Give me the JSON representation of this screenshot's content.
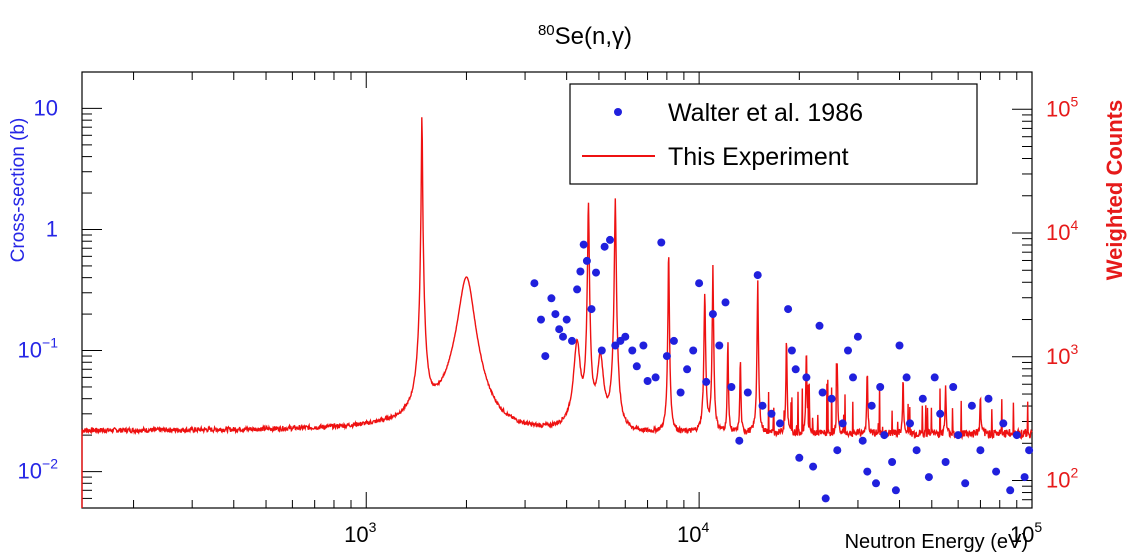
{
  "chart_data": {
    "type": "scatter",
    "title": {
      "isotope_mass": "80",
      "reaction": "Se(n,γ)"
    },
    "xlabel": "Neutron Energy (eV)",
    "ylabel_left": "Cross-section (b)",
    "ylabel_right": "Weighted  Counts",
    "x_scale": "log",
    "y_scale": "log",
    "xlim": [
      140,
      100000
    ],
    "ylim_left": [
      0.005,
      20
    ],
    "ylim_right": [
      60,
      200000
    ],
    "x_ticks": [
      {
        "base": "10",
        "exp": "3",
        "value": 1000
      },
      {
        "base": "10",
        "exp": "4",
        "value": 10000
      },
      {
        "base": "10",
        "exp": "5",
        "value": 100000
      }
    ],
    "y_ticks_left": [
      {
        "base": "10",
        "exp": "",
        "value": 10
      },
      {
        "base": "1",
        "exp": "",
        "value": 1
      },
      {
        "base": "10",
        "exp": "−1",
        "value": 0.1
      },
      {
        "base": "10",
        "exp": "−2",
        "value": 0.01
      }
    ],
    "y_ticks_right": [
      {
        "base": "10",
        "exp": "5",
        "value": 100000
      },
      {
        "base": "10",
        "exp": "4",
        "value": 10000
      },
      {
        "base": "10",
        "exp": "3",
        "value": 1000
      },
      {
        "base": "10",
        "exp": "2",
        "value": 100
      }
    ],
    "legend_position": "top-right",
    "colors": {
      "left_axis": "#2626e6",
      "right_axis": "#e61a1a",
      "scatter": "#2020dd",
      "line": "#ee1111"
    },
    "series": [
      {
        "name": "Walter et al. 1986",
        "kind": "scatter",
        "axis": "left",
        "points": [
          [
            3200,
            0.36
          ],
          [
            3350,
            0.18
          ],
          [
            3450,
            0.09
          ],
          [
            3600,
            0.27
          ],
          [
            3700,
            0.2
          ],
          [
            3800,
            0.15
          ],
          [
            3900,
            0.13
          ],
          [
            4000,
            0.18
          ],
          [
            4150,
            0.12
          ],
          [
            4300,
            0.32
          ],
          [
            4400,
            0.45
          ],
          [
            4500,
            0.75
          ],
          [
            4600,
            0.55
          ],
          [
            4750,
            0.22
          ],
          [
            4900,
            0.44
          ],
          [
            5100,
            0.1
          ],
          [
            5200,
            0.72
          ],
          [
            5400,
            0.82
          ],
          [
            5600,
            0.11
          ],
          [
            5800,
            0.12
          ],
          [
            6000,
            0.13
          ],
          [
            6300,
            0.1
          ],
          [
            6500,
            0.074
          ],
          [
            6800,
            0.11
          ],
          [
            7000,
            0.056
          ],
          [
            7400,
            0.06
          ],
          [
            7700,
            0.78
          ],
          [
            8000,
            0.09
          ],
          [
            8400,
            0.12
          ],
          [
            8800,
            0.045
          ],
          [
            9200,
            0.07
          ],
          [
            9600,
            0.1
          ],
          [
            10000,
            0.36
          ],
          [
            10500,
            0.055
          ],
          [
            11000,
            0.2
          ],
          [
            11500,
            0.11
          ],
          [
            12000,
            0.25
          ],
          [
            12500,
            0.05
          ],
          [
            13200,
            0.018
          ],
          [
            14000,
            0.045
          ],
          [
            15000,
            0.42
          ],
          [
            15500,
            0.035
          ],
          [
            16500,
            0.03
          ],
          [
            17500,
            0.025
          ],
          [
            18500,
            0.22
          ],
          [
            19000,
            0.1
          ],
          [
            19500,
            0.07
          ],
          [
            20000,
            0.013
          ],
          [
            21000,
            0.06
          ],
          [
            22000,
            0.011
          ],
          [
            23000,
            0.16
          ],
          [
            23500,
            0.045
          ],
          [
            24000,
            0.006
          ],
          [
            25000,
            0.04
          ],
          [
            26000,
            0.015
          ],
          [
            27000,
            0.025
          ],
          [
            28000,
            0.1
          ],
          [
            29000,
            0.06
          ],
          [
            30000,
            0.13
          ],
          [
            31000,
            0.018
          ],
          [
            32000,
            0.01
          ],
          [
            33000,
            0.035
          ],
          [
            34000,
            0.008
          ],
          [
            35000,
            0.05
          ],
          [
            36000,
            0.02
          ],
          [
            38000,
            0.012
          ],
          [
            39000,
            0.007
          ],
          [
            40000,
            0.11
          ],
          [
            42000,
            0.06
          ],
          [
            43000,
            0.025
          ],
          [
            45000,
            0.015
          ],
          [
            47000,
            0.04
          ],
          [
            49000,
            0.009
          ],
          [
            51000,
            0.06
          ],
          [
            53000,
            0.03
          ],
          [
            55000,
            0.012
          ],
          [
            58000,
            0.05
          ],
          [
            60000,
            0.02
          ],
          [
            63000,
            0.008
          ],
          [
            66000,
            0.035
          ],
          [
            70000,
            0.015
          ],
          [
            74000,
            0.04
          ],
          [
            78000,
            0.01
          ],
          [
            82000,
            0.025
          ],
          [
            86000,
            0.007
          ],
          [
            90000,
            0.02
          ],
          [
            95000,
            0.009
          ],
          [
            98000,
            0.015
          ]
        ]
      },
      {
        "name": "This Experiment",
        "kind": "line",
        "axis": "right",
        "baseline": 240,
        "noise_fraction": 0.05,
        "resonances": [
          {
            "energy": 1470,
            "peak": 90000,
            "width_fraction": 0.003
          },
          {
            "energy": 2000,
            "peak": 4400,
            "width_fraction": 0.05
          },
          {
            "energy": 4300,
            "peak": 1300,
            "width_fraction": 0.02
          },
          {
            "energy": 4650,
            "peak": 18000,
            "width_fraction": 0.004
          },
          {
            "energy": 5050,
            "peak": 1000,
            "width_fraction": 0.02
          },
          {
            "energy": 5600,
            "peak": 19000,
            "width_fraction": 0.004
          },
          {
            "energy": 8100,
            "peak": 7500,
            "width_fraction": 0.003
          },
          {
            "energy": 10400,
            "peak": 3300,
            "width_fraction": 0.004
          },
          {
            "energy": 11000,
            "peak": 5500,
            "width_fraction": 0.003
          },
          {
            "energy": 12200,
            "peak": 1400,
            "width_fraction": 0.003
          },
          {
            "energy": 13300,
            "peak": 1000,
            "width_fraction": 0.003
          },
          {
            "energy": 15000,
            "peak": 4200,
            "width_fraction": 0.003
          },
          {
            "energy": 18300,
            "peak": 1500,
            "width_fraction": 0.003
          },
          {
            "energy": 21000,
            "peak": 1200,
            "width_fraction": 0.003
          },
          {
            "energy": 26000,
            "peak": 900,
            "width_fraction": 0.003
          },
          {
            "energy": 32000,
            "peak": 800,
            "width_fraction": 0.003
          },
          {
            "energy": 41000,
            "peak": 700,
            "width_fraction": 0.003
          },
          {
            "energy": 55000,
            "peak": 600,
            "width_fraction": 0.003
          },
          {
            "energy": 70000,
            "peak": 500,
            "width_fraction": 0.003
          }
        ]
      }
    ]
  }
}
